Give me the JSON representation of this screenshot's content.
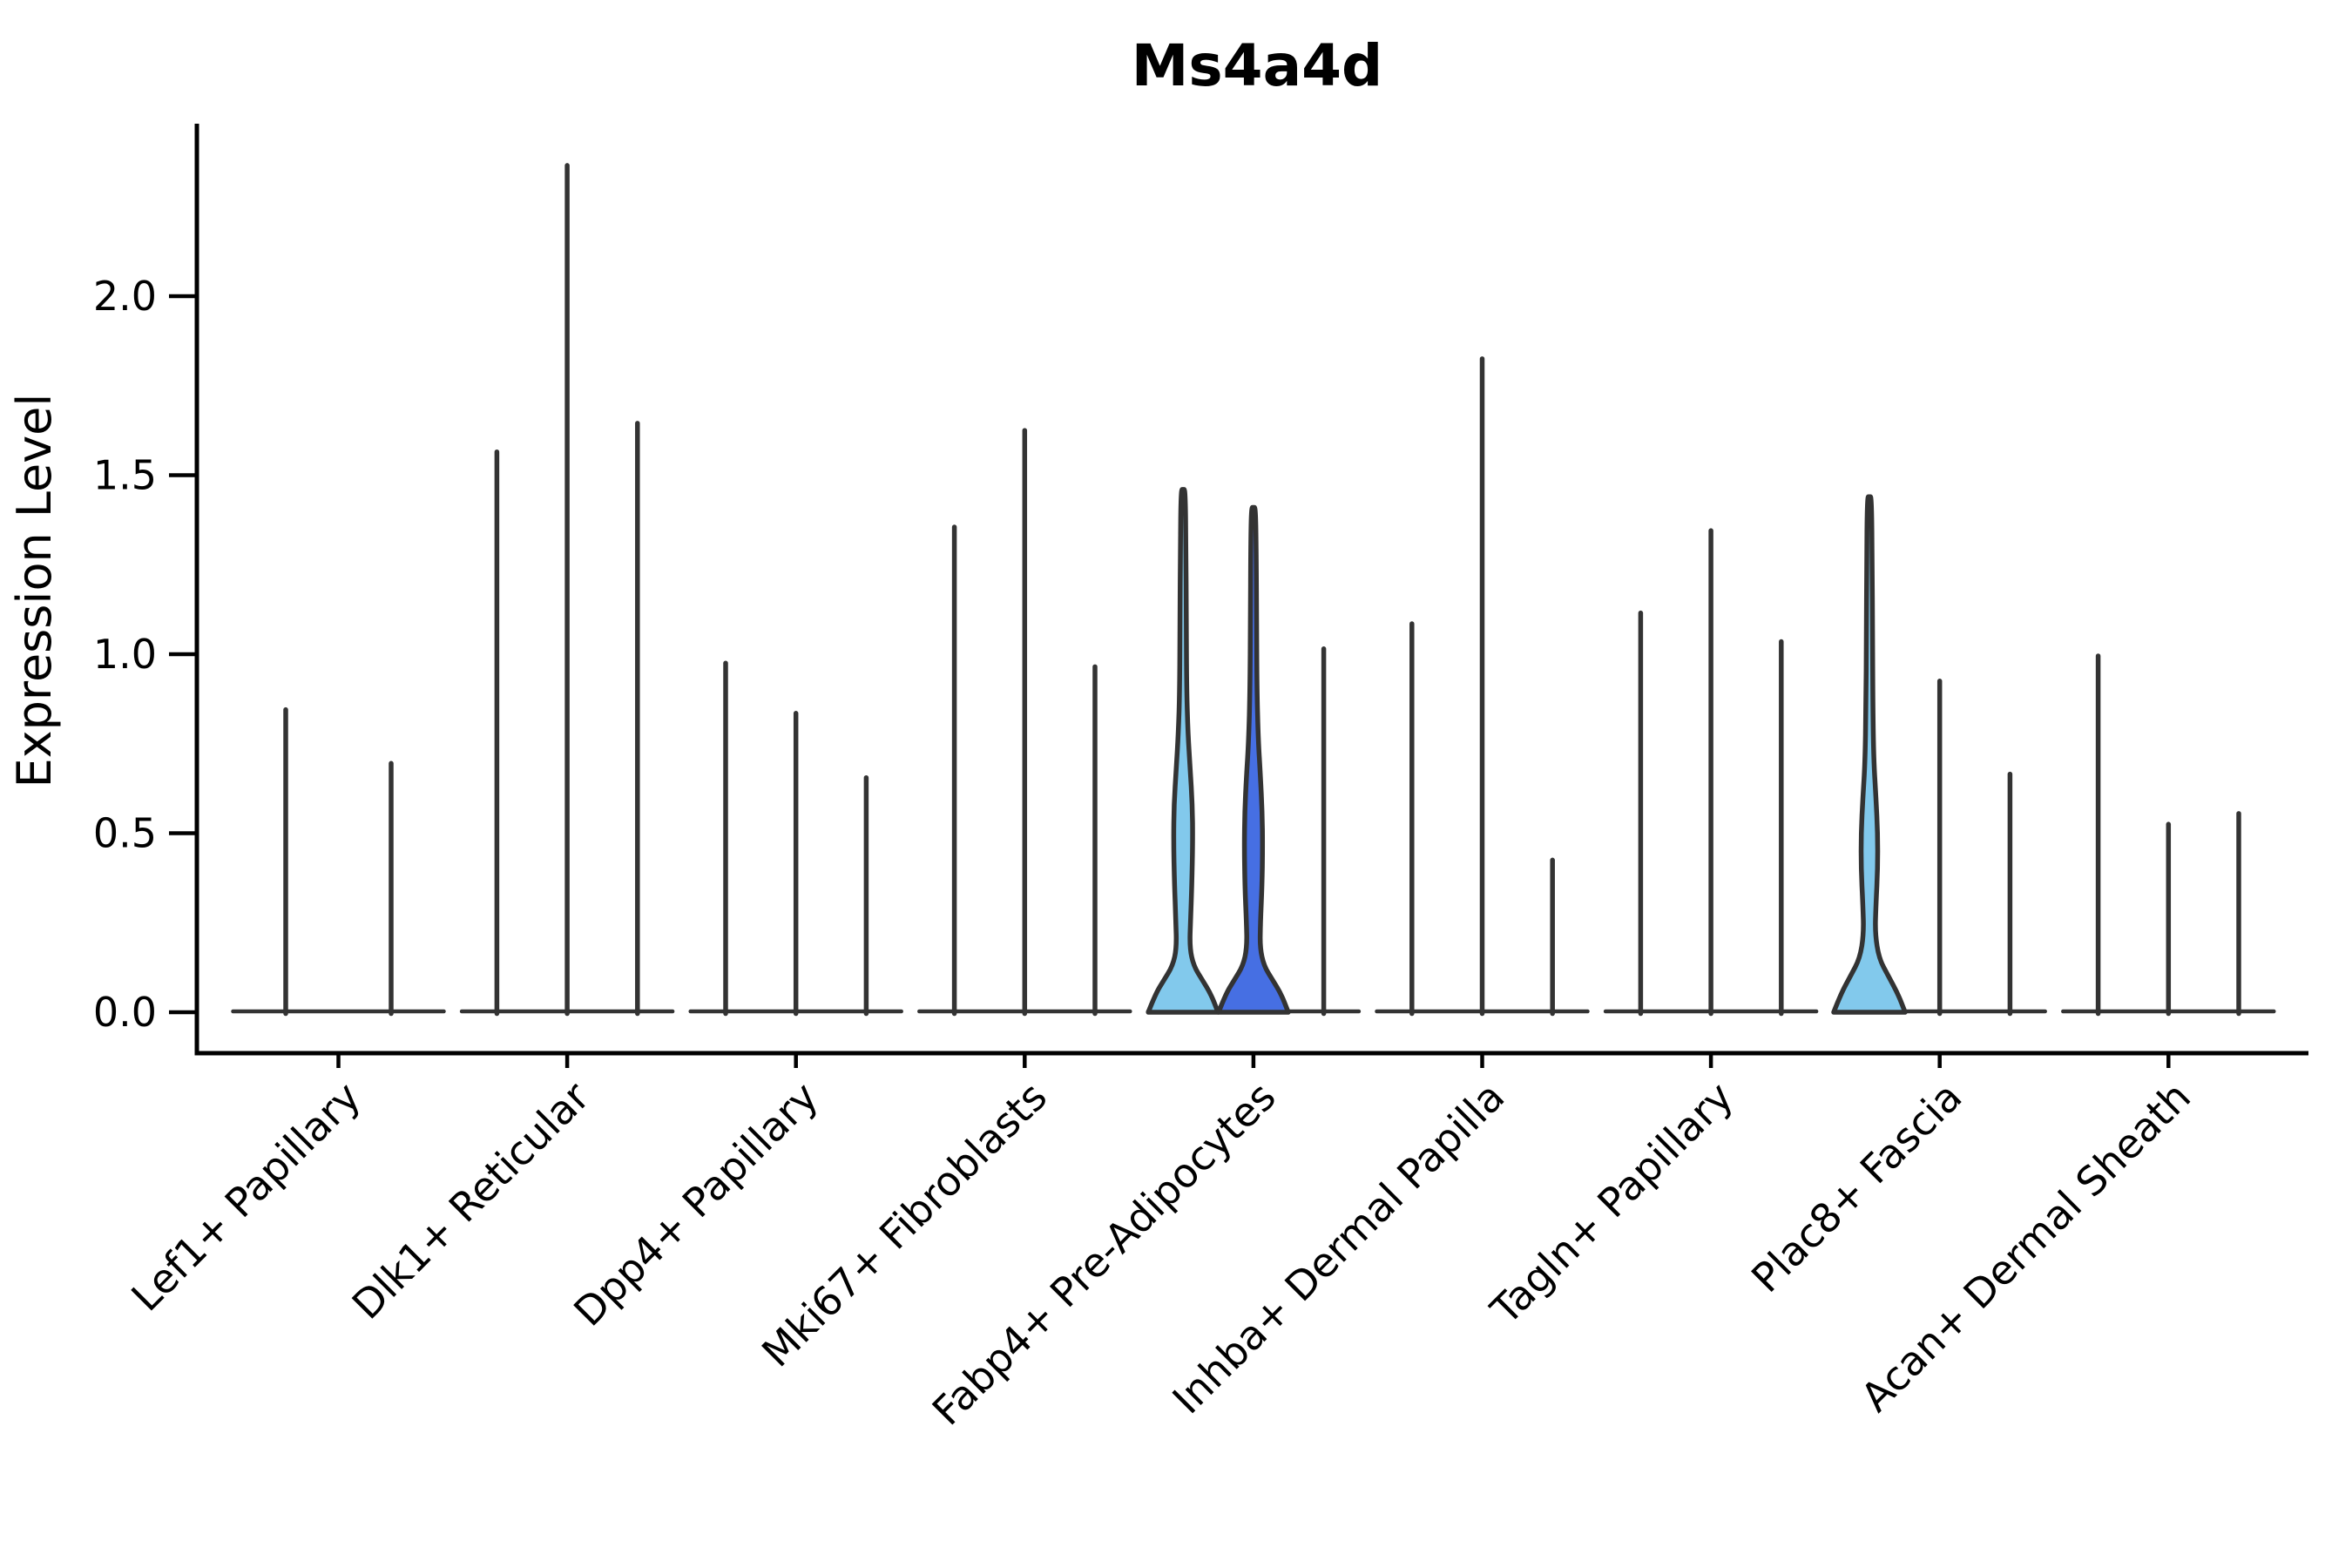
{
  "chart_data": {
    "type": "violin",
    "title": "Ms4a4d",
    "ylabel": "Expression Level",
    "xlabel": "",
    "yticks": [
      0.0,
      0.5,
      1.0,
      1.5,
      2.0
    ],
    "ytick_labels": [
      "0.0",
      "0.5",
      "1.0",
      "1.5",
      "2.0"
    ],
    "ylim": [
      -0.11,
      2.48
    ],
    "grid": false,
    "legend": "none",
    "colors": {
      "fill_light_blue": "#82C9EC",
      "fill_royal_blue": "#466FE3",
      "violin_line": "#333333",
      "axis_line": "#000000"
    },
    "categories": [
      {
        "label": "Lef1+ Papillary",
        "violins": [
          {
            "max": 0.85
          },
          {
            "max": 0.7
          }
        ]
      },
      {
        "label": "Dlk1+ Reticular",
        "violins": [
          {
            "max": 1.57
          },
          {
            "max": 2.37
          },
          {
            "max": 1.65
          }
        ]
      },
      {
        "label": "Dpp4+ Papillary",
        "violins": [
          {
            "max": 0.98
          },
          {
            "max": 0.84
          },
          {
            "max": 0.66
          }
        ]
      },
      {
        "label": "Mki67+ Fibroblasts",
        "violins": [
          {
            "max": 1.36
          },
          {
            "max": 1.63
          },
          {
            "max": 0.97
          }
        ]
      },
      {
        "label": "Fabp4+ Pre-Adipocytes",
        "violins": [
          {
            "max": 1.46,
            "fill": "fill_light_blue",
            "profile": [
              [
                0,
                40
              ],
              [
                0.05,
                32
              ],
              [
                0.09,
                22
              ],
              [
                0.13,
                12
              ],
              [
                0.18,
                7.5
              ],
              [
                0.26,
                8.5
              ],
              [
                0.36,
                10
              ],
              [
                0.48,
                11
              ],
              [
                0.58,
                10.5
              ],
              [
                0.68,
                8
              ],
              [
                0.78,
                5.5
              ],
              [
                0.9,
                4
              ],
              [
                1.1,
                3.6
              ],
              [
                1.3,
                3.2
              ],
              [
                1.46,
                2.4
              ]
            ]
          },
          {
            "max": 1.41,
            "fill": "fill_royal_blue",
            "profile": [
              [
                0,
                40
              ],
              [
                0.05,
                32
              ],
              [
                0.09,
                22
              ],
              [
                0.13,
                12
              ],
              [
                0.18,
                7.5
              ],
              [
                0.25,
                8
              ],
              [
                0.35,
                9.8
              ],
              [
                0.46,
                10.5
              ],
              [
                0.56,
                10
              ],
              [
                0.66,
                8
              ],
              [
                0.76,
                5.5
              ],
              [
                0.9,
                4
              ],
              [
                1.1,
                3.5
              ],
              [
                1.28,
                3.2
              ],
              [
                1.41,
                2.4
              ]
            ]
          },
          {
            "max": 1.02
          }
        ]
      },
      {
        "label": "Inhba+ Dermal Papilla",
        "violins": [
          {
            "max": 1.09
          },
          {
            "max": 1.83
          },
          {
            "max": 0.43
          }
        ]
      },
      {
        "label": "Tagln+ Papillary",
        "violins": [
          {
            "max": 1.12
          },
          {
            "max": 1.35
          },
          {
            "max": 1.04
          }
        ]
      },
      {
        "label": "Plac8+ Fascia",
        "violins": [
          {
            "max": 1.44,
            "fill": "fill_light_blue",
            "profile": [
              [
                0,
                41
              ],
              [
                0.05,
                33
              ],
              [
                0.1,
                22
              ],
              [
                0.15,
                11
              ],
              [
                0.22,
                6.5
              ],
              [
                0.3,
                7.5
              ],
              [
                0.4,
                9.5
              ],
              [
                0.5,
                9.5
              ],
              [
                0.6,
                7.5
              ],
              [
                0.7,
                5
              ],
              [
                0.85,
                4
              ],
              [
                1.05,
                3.5
              ],
              [
                1.25,
                3.2
              ],
              [
                1.44,
                2.4
              ]
            ]
          },
          {
            "max": 0.93
          },
          {
            "max": 0.67
          }
        ]
      },
      {
        "label": "Acan+ Dermal Sheath",
        "violins": [
          {
            "max": 1.0
          },
          {
            "max": 0.53
          },
          {
            "max": 0.56
          }
        ]
      }
    ]
  }
}
